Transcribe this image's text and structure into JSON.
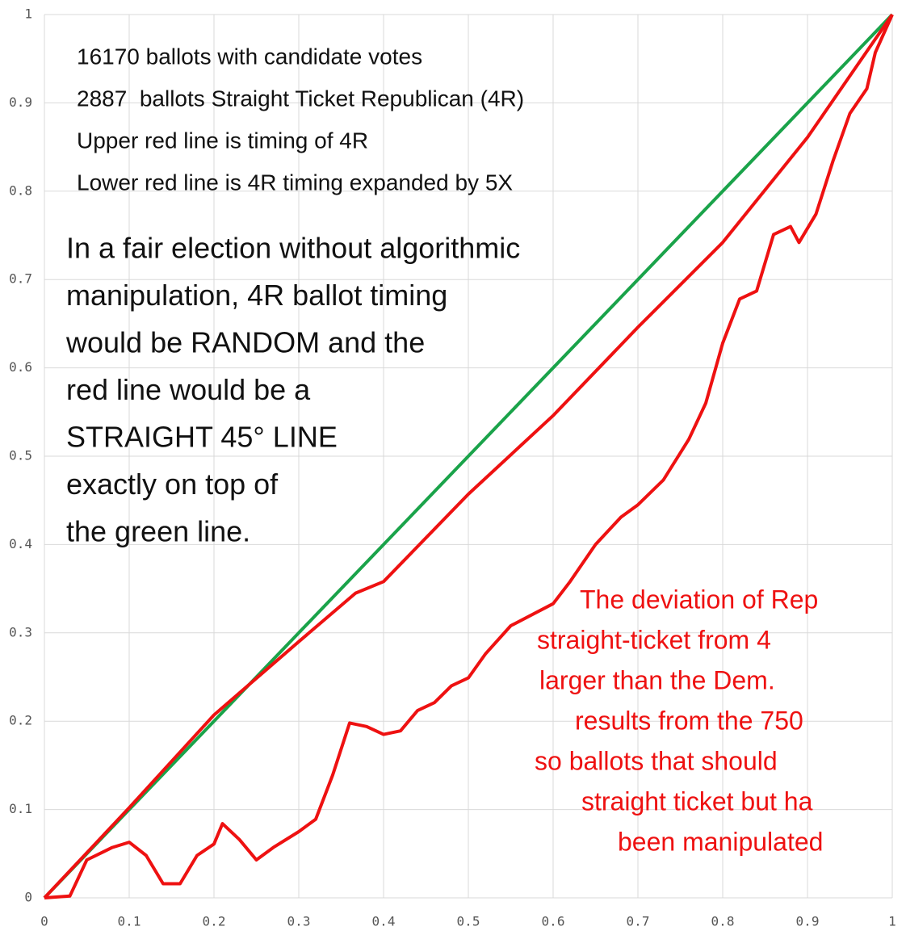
{
  "chart_data": {
    "type": "line",
    "xlim": [
      0,
      1
    ],
    "ylim": [
      0,
      1
    ],
    "xticks": [
      0,
      0.1,
      0.2,
      0.3,
      0.4,
      0.5,
      0.6,
      0.7,
      0.8,
      0.9,
      1
    ],
    "yticks": [
      0,
      0.1,
      0.2,
      0.3,
      0.4,
      0.5,
      0.6,
      0.7,
      0.8,
      0.9,
      1
    ],
    "grid": true,
    "series": [
      {
        "color": "#1aa34a",
        "x": [
          0,
          1
        ],
        "values": [
          0,
          1
        ]
      },
      {
        "color": "#ee1111",
        "x": [
          0,
          0.1,
          0.2,
          0.3,
          0.367,
          0.4,
          0.5,
          0.6,
          0.7,
          0.8,
          0.9,
          1
        ],
        "values": [
          0,
          0.102,
          0.207,
          0.29,
          0.345,
          0.358,
          0.457,
          0.546,
          0.646,
          0.742,
          0.861,
          1
        ]
      },
      {
        "color": "#ee1111",
        "x": [
          0,
          0.03,
          0.05,
          0.08,
          0.1,
          0.12,
          0.14,
          0.16,
          0.18,
          0.2,
          0.21,
          0.23,
          0.25,
          0.27,
          0.3,
          0.32,
          0.34,
          0.36,
          0.38,
          0.4,
          0.42,
          0.44,
          0.46,
          0.48,
          0.5,
          0.52,
          0.55,
          0.6,
          0.62,
          0.65,
          0.68,
          0.7,
          0.73,
          0.76,
          0.78,
          0.8,
          0.82,
          0.84,
          0.86,
          0.88,
          0.89,
          0.91,
          0.93,
          0.95,
          0.97,
          0.98,
          1
        ],
        "values": [
          0,
          0.002,
          0.043,
          0.057,
          0.063,
          0.048,
          0.016,
          0.016,
          0.048,
          0.061,
          0.084,
          0.066,
          0.043,
          0.057,
          0.075,
          0.089,
          0.139,
          0.198,
          0.194,
          0.185,
          0.189,
          0.212,
          0.221,
          0.24,
          0.249,
          0.276,
          0.308,
          0.333,
          0.358,
          0.4,
          0.431,
          0.445,
          0.473,
          0.519,
          0.56,
          0.628,
          0.678,
          0.687,
          0.751,
          0.76,
          0.742,
          0.774,
          0.834,
          0.888,
          0.916,
          0.957,
          1
        ]
      }
    ],
    "annotations": [
      {
        "color": "#111111",
        "lines": [
          "16170 ballots with candidate votes",
          "2887  ballots Straight Ticket Republican (4R)",
          "Upper red line is timing of 4R",
          "Lower red line is 4R timing expanded by 5X"
        ]
      },
      {
        "color": "#111111",
        "lines": [
          "In a fair election without algorithmic",
          "manipulation, 4R ballot timing",
          "would be RANDOM and the",
          "red line would be a",
          "STRAIGHT 45° LINE",
          "exactly on top of",
          "the green line."
        ]
      },
      {
        "color": "#ee1111",
        "lines": [
          "The deviation of Rep",
          "straight-ticket from 4",
          "larger than the Dem.",
          "results from the 750",
          "so ballots that should",
          "straight ticket but ha",
          "been manipulated"
        ]
      }
    ]
  }
}
